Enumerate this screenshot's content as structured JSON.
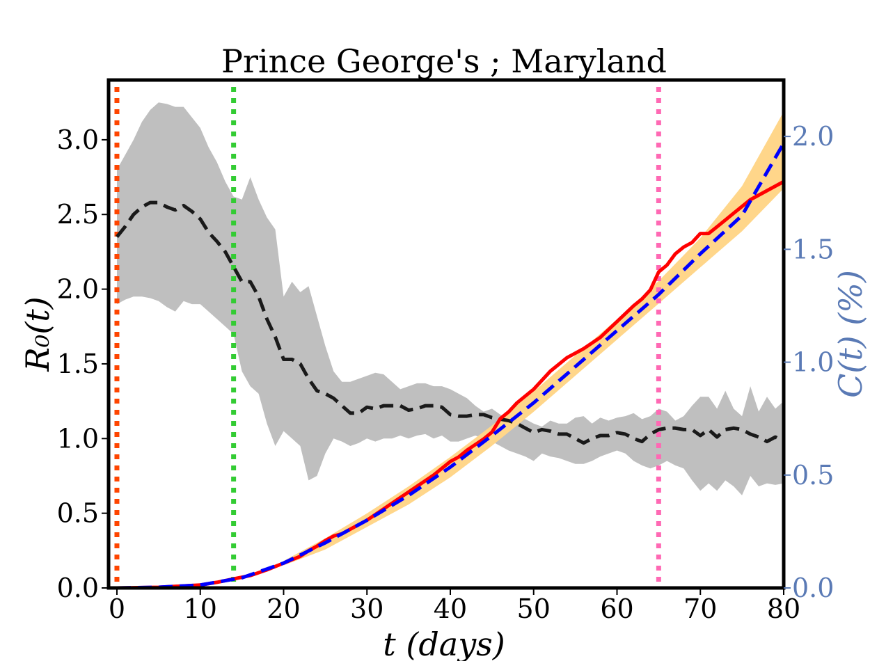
{
  "chart_data": {
    "type": "line",
    "title": "Prince George's ; Maryland",
    "xlabel": "t (days)",
    "ylabel_left": "R₀(t)",
    "ylabel_right": "C(t) (%)",
    "xlim": [
      -1,
      80
    ],
    "ylim_left": [
      0,
      3.4
    ],
    "ylim_right": [
      0,
      2.25
    ],
    "x_ticks": [
      "0",
      "10",
      "20",
      "30",
      "40",
      "50",
      "60",
      "70",
      "80"
    ],
    "y_left_ticks": [
      "0.0",
      "0.5",
      "1.0",
      "1.5",
      "2.0",
      "2.5",
      "3.0"
    ],
    "y_right_ticks": [
      "0.0",
      "0.5",
      "1.0",
      "1.5",
      "2.0"
    ],
    "vlines": [
      {
        "x": 0,
        "color": "#ff4500"
      },
      {
        "x": 14,
        "color": "#33cc33"
      },
      {
        "x": 65,
        "color": "#ff69b4"
      }
    ],
    "r0_mean": {
      "color": "#1a1a1a",
      "x": [
        0,
        1,
        2,
        3,
        4,
        5,
        6,
        7,
        8,
        9,
        10,
        11,
        12,
        13,
        14,
        15,
        16,
        17,
        18,
        19,
        20,
        21,
        22,
        23,
        24,
        25,
        26,
        27,
        28,
        29,
        30,
        31,
        32,
        33,
        34,
        35,
        36,
        37,
        38,
        39,
        40,
        41,
        42,
        43,
        44,
        45,
        46,
        47,
        48,
        49,
        50,
        51,
        52,
        53,
        54,
        55,
        56,
        57,
        58,
        59,
        60,
        61,
        62,
        63,
        64,
        65,
        66,
        67,
        68,
        69,
        70,
        71,
        72,
        73,
        74,
        75,
        76,
        77,
        78,
        79,
        80
      ],
      "y": [
        2.35,
        2.42,
        2.5,
        2.55,
        2.58,
        2.58,
        2.55,
        2.53,
        2.56,
        2.52,
        2.47,
        2.38,
        2.32,
        2.25,
        2.15,
        2.05,
        2.05,
        1.95,
        1.8,
        1.68,
        1.53,
        1.53,
        1.5,
        1.4,
        1.32,
        1.3,
        1.27,
        1.22,
        1.17,
        1.17,
        1.21,
        1.2,
        1.22,
        1.22,
        1.22,
        1.19,
        1.2,
        1.22,
        1.22,
        1.21,
        1.16,
        1.15,
        1.15,
        1.16,
        1.16,
        1.14,
        1.13,
        1.12,
        1.1,
        1.07,
        1.04,
        1.06,
        1.05,
        1.03,
        1.03,
        1.0,
        0.97,
        1.0,
        1.02,
        1.02,
        1.04,
        1.03,
        1.0,
        0.98,
        1.03,
        1.06,
        1.07,
        1.07,
        1.06,
        1.06,
        1.02,
        1.06,
        1.01,
        1.06,
        1.07,
        1.06,
        1.03,
        1.01,
        0.98,
        1.01,
        0.98
      ]
    },
    "r0_band": {
      "color": "#bfbfbf",
      "x": [
        0,
        1,
        2,
        3,
        4,
        5,
        6,
        7,
        8,
        9,
        10,
        11,
        12,
        13,
        14,
        15,
        16,
        17,
        18,
        19,
        20,
        21,
        22,
        23,
        24,
        25,
        26,
        27,
        28,
        29,
        30,
        31,
        32,
        33,
        34,
        35,
        36,
        37,
        38,
        39,
        40,
        41,
        42,
        43,
        44,
        45,
        46,
        47,
        48,
        49,
        50,
        51,
        52,
        53,
        54,
        55,
        56,
        57,
        58,
        59,
        60,
        61,
        62,
        63,
        64,
        65,
        66,
        67,
        68,
        69,
        70,
        71,
        72,
        73,
        74,
        75,
        76,
        77,
        78,
        79,
        80
      ],
      "lower": [
        1.9,
        1.93,
        1.95,
        1.95,
        1.94,
        1.92,
        1.88,
        1.85,
        1.92,
        1.9,
        1.9,
        1.85,
        1.8,
        1.75,
        1.7,
        1.45,
        1.35,
        1.3,
        1.1,
        0.95,
        1.05,
        1.0,
        0.95,
        0.72,
        0.75,
        0.9,
        1.0,
        0.98,
        0.95,
        0.97,
        1.0,
        0.98,
        1.0,
        1.0,
        1.02,
        1.0,
        1.02,
        1.03,
        1.0,
        1.02,
        0.98,
        0.98,
        1.0,
        1.02,
        1.0,
        0.98,
        0.95,
        0.92,
        0.9,
        0.88,
        0.85,
        0.9,
        0.88,
        0.87,
        0.85,
        0.83,
        0.83,
        0.85,
        0.88,
        0.9,
        0.92,
        0.9,
        0.85,
        0.82,
        0.8,
        0.82,
        0.85,
        0.82,
        0.8,
        0.72,
        0.65,
        0.7,
        0.65,
        0.72,
        0.68,
        0.62,
        0.75,
        0.68,
        0.7,
        0.69,
        0.7
      ],
      "upper": [
        2.8,
        2.9,
        3.0,
        3.12,
        3.2,
        3.25,
        3.24,
        3.22,
        3.22,
        3.15,
        3.08,
        2.95,
        2.85,
        2.72,
        2.62,
        2.6,
        2.75,
        2.6,
        2.48,
        2.4,
        1.95,
        2.05,
        1.98,
        2.02,
        1.82,
        1.62,
        1.45,
        1.38,
        1.38,
        1.4,
        1.42,
        1.44,
        1.43,
        1.38,
        1.33,
        1.35,
        1.37,
        1.37,
        1.35,
        1.35,
        1.33,
        1.3,
        1.27,
        1.22,
        1.18,
        1.2,
        1.16,
        1.13,
        1.12,
        1.13,
        1.1,
        1.08,
        1.12,
        1.1,
        1.1,
        1.14,
        1.15,
        1.1,
        1.14,
        1.12,
        1.14,
        1.15,
        1.17,
        1.13,
        1.15,
        1.2,
        1.18,
        1.12,
        1.15,
        1.22,
        1.28,
        1.28,
        1.2,
        1.32,
        1.2,
        1.15,
        1.35,
        1.18,
        1.28,
        1.2,
        1.25
      ]
    },
    "c_observed": {
      "color": "#ff0000",
      "x": [
        0,
        5,
        10,
        12,
        14,
        16,
        18,
        20,
        22,
        23,
        24,
        25,
        26,
        27,
        28,
        30,
        32,
        34,
        36,
        38,
        40,
        41,
        42,
        44,
        45,
        46,
        47,
        48,
        50,
        52,
        54,
        56,
        58,
        60,
        62,
        63,
        64,
        65,
        66,
        67,
        68,
        69,
        70,
        71,
        72,
        73,
        74,
        76,
        78,
        80
      ],
      "y": [
        0,
        0.003,
        0.013,
        0.025,
        0.04,
        0.055,
        0.08,
        0.11,
        0.14,
        0.165,
        0.185,
        0.21,
        0.23,
        0.24,
        0.26,
        0.3,
        0.35,
        0.4,
        0.45,
        0.5,
        0.56,
        0.58,
        0.61,
        0.66,
        0.69,
        0.75,
        0.78,
        0.82,
        0.88,
        0.96,
        1.02,
        1.06,
        1.11,
        1.18,
        1.25,
        1.28,
        1.32,
        1.4,
        1.43,
        1.48,
        1.51,
        1.53,
        1.57,
        1.57,
        1.6,
        1.63,
        1.66,
        1.72,
        1.76,
        1.8
      ]
    },
    "c_fit": {
      "color": "#0000ff",
      "x": [
        0,
        5,
        10,
        15,
        20,
        25,
        30,
        35,
        40,
        45,
        50,
        55,
        60,
        65,
        70,
        75,
        80
      ],
      "y": [
        0,
        0.003,
        0.013,
        0.045,
        0.11,
        0.2,
        0.3,
        0.41,
        0.535,
        0.675,
        0.82,
        0.98,
        1.14,
        1.3,
        1.48,
        1.65,
        1.97
      ]
    },
    "c_band": {
      "color": "#ffd68a",
      "x": [
        20,
        25,
        30,
        35,
        40,
        45,
        50,
        55,
        60,
        65,
        70,
        75,
        80
      ],
      "lower": [
        0.1,
        0.17,
        0.27,
        0.37,
        0.49,
        0.63,
        0.78,
        0.94,
        1.1,
        1.26,
        1.42,
        1.58,
        1.77
      ],
      "upper": [
        0.12,
        0.22,
        0.33,
        0.45,
        0.58,
        0.72,
        0.87,
        1.03,
        1.19,
        1.36,
        1.55,
        1.78,
        2.11
      ]
    }
  }
}
